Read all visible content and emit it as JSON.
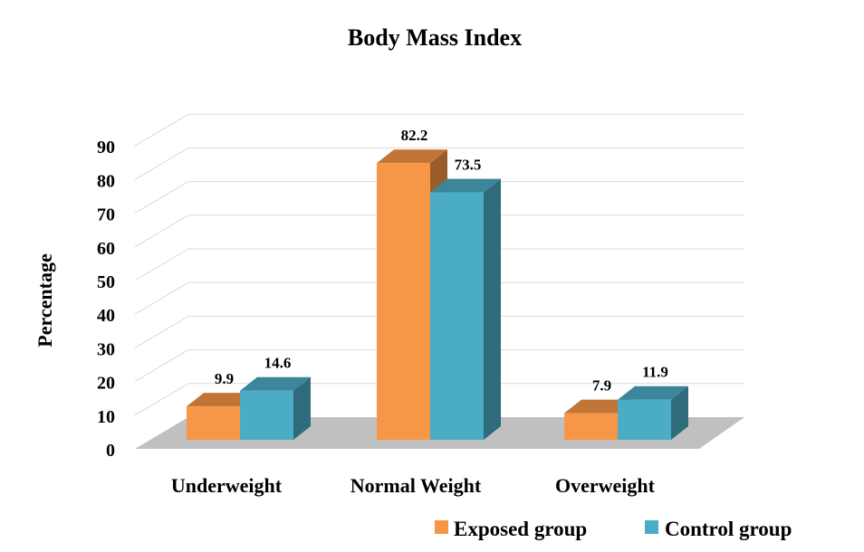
{
  "chart_data": {
    "type": "bar",
    "title": "Body Mass Index",
    "xlabel": "",
    "ylabel": "Percentage",
    "categories": [
      "Underweight",
      "Normal Weight",
      "Overweight"
    ],
    "series": [
      {
        "name": "Exposed group",
        "values": [
          9.9,
          82.2,
          7.9
        ],
        "color": "#f79646"
      },
      {
        "name": "Control group",
        "values": [
          14.6,
          73.5,
          11.9
        ],
        "color": "#4bacc6"
      }
    ],
    "ylim": [
      0,
      90
    ],
    "yticks": [
      0,
      10,
      20,
      30,
      40,
      50,
      60,
      70,
      80,
      90
    ],
    "grid": true,
    "legend": "bottom-right",
    "style": "3d-clustered-column",
    "floor_color": "#c0c0c0"
  }
}
